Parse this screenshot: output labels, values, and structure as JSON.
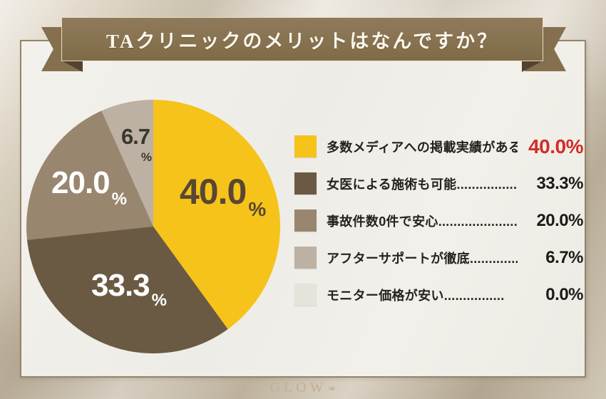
{
  "banner": {
    "title": "TAクリニックのメリットはなんですか？"
  },
  "colors": {
    "ribbon": "#87724f",
    "ribbon_fold": "#54422e",
    "ribbon_edge": "#e9dcc1",
    "panel_bg": "#f1efe9",
    "panel_border": "#96836a",
    "accent_red": "#d32c29",
    "pie_label_on_yellow": "#594733",
    "pie_label_white": "#ffffff",
    "pie_label_dark": "#3a372e",
    "background_beige": "#d4cab8"
  },
  "chart_data": {
    "type": "pie",
    "title": "TAクリニックのメリットはなんですか？",
    "direction": "clockwise",
    "start_angle_deg": 0,
    "categories": [
      "多数メディアへの掲載実績がある",
      "女医による施術も可能",
      "事故件数0件で安心",
      "アフターサポートが徹底",
      "モニター価格が安い"
    ],
    "values": [
      40.0,
      33.3,
      20.0,
      6.7,
      0.0
    ],
    "colors": [
      "#f5c31a",
      "#6a5a43",
      "#98866f",
      "#bcb1a3",
      "#e6e3da"
    ],
    "legend_position": "right",
    "slice_labels": [
      {
        "number": "40.0",
        "unit": "%"
      },
      {
        "number": "33.3",
        "unit": "%"
      },
      {
        "number": "20.0",
        "unit": "%"
      },
      {
        "number": "6.7",
        "unit": "%"
      }
    ]
  },
  "legend": {
    "rows": [
      {
        "label": "多数メディアへの掲載実績がある....",
        "value": "40.0%",
        "swatch": "#f5c31a",
        "highlight": true
      },
      {
        "label": "女医による施術も可能.................",
        "value": "33.3%",
        "swatch": "#6a5a43",
        "highlight": false
      },
      {
        "label": "事故件数0件で安心.......................",
        "value": "20.0%",
        "swatch": "#98866f",
        "highlight": false
      },
      {
        "label": "アフターサポートが徹底.............",
        "value": "6.7%",
        "swatch": "#bcb1a3",
        "highlight": false
      },
      {
        "label": "モニター価格が安い................",
        "value": "0.0%",
        "swatch": "#e6e3da",
        "highlight": false
      }
    ]
  },
  "watermark": {
    "text": "GLOW",
    "flourish": "❧"
  }
}
